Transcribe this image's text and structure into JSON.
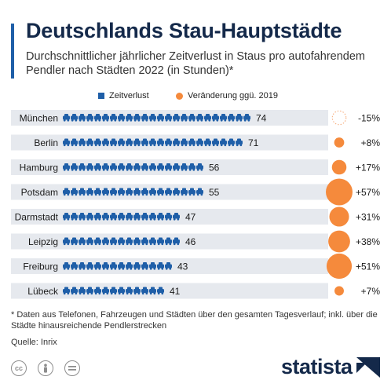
{
  "header": {
    "title": "Deutschlands Stau-Hauptstädte",
    "subtitle": "Durchschnittlicher jährlicher Zeitverlust in Staus pro autofahrendem Pendler nach Städten 2022 (in Stunden)*"
  },
  "legend": {
    "time_label": "Zeitverlust",
    "change_label": "Veränderung ggü. 2019"
  },
  "colors": {
    "accent": "#1f5fa8",
    "icon": "#1f5fa8",
    "bubble": "#f58a3c",
    "band": "#e6e9ee",
    "title": "#14294a"
  },
  "icon_name": "car-icon",
  "chart_data": {
    "type": "bar",
    "categories": [
      "München",
      "Berlin",
      "Hamburg",
      "Potsdam",
      "Darmstadt",
      "Leipzig",
      "Freiburg",
      "Lübeck"
    ],
    "series": [
      {
        "name": "Zeitverlust",
        "values": [
          74,
          71,
          56,
          55,
          47,
          46,
          43,
          41
        ]
      },
      {
        "name": "Veränderung ggü. 2019",
        "values": [
          -15,
          8,
          17,
          57,
          31,
          38,
          51,
          7
        ]
      }
    ],
    "value_labels": [
      "74",
      "71",
      "56",
      "55",
      "47",
      "46",
      "43",
      "41"
    ],
    "change_labels": [
      "-15%",
      "+8%",
      "+17%",
      "+57%",
      "+31%",
      "+38%",
      "+51%",
      "+7%"
    ]
  },
  "footer": {
    "footnote": "* Daten aus Telefonen, Fahrzeugen und Städten über den gesamten Tagesverlauf; inkl. über die Städte hinausreichende Pendlerstrecken",
    "source": "Quelle: Inrix",
    "license_icons": [
      "cc-icon",
      "person-icon",
      "equals-icon"
    ],
    "brand": "statista"
  }
}
